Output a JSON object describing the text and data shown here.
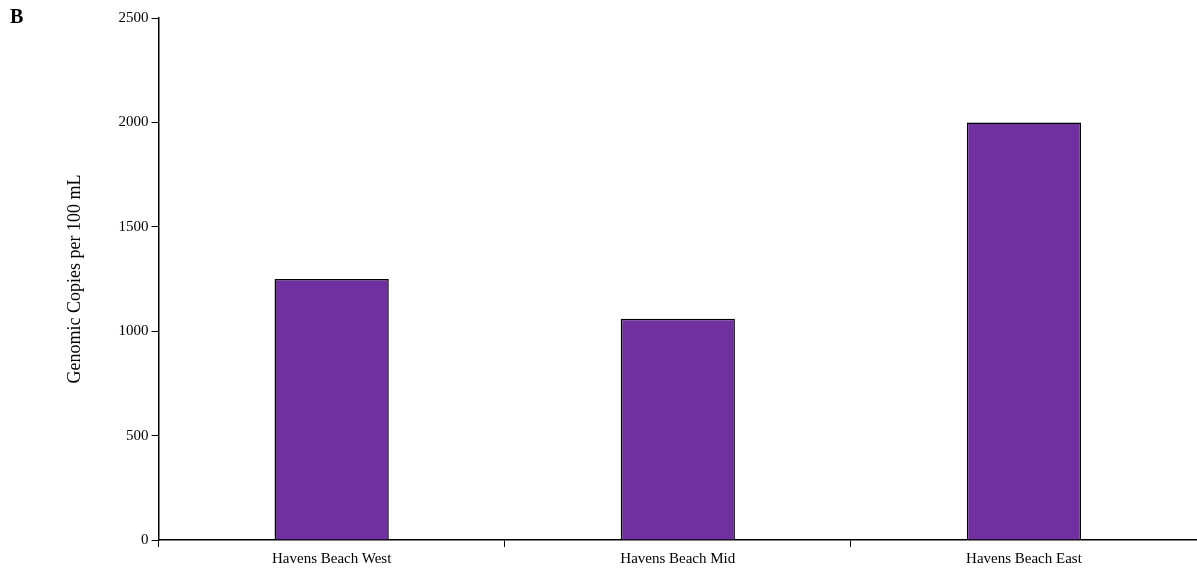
{
  "chart_data": {
    "type": "bar",
    "ylabel": "Genomic Copies per 100 mL",
    "categories": [
      "Havens Beach West",
      "Havens Beach Mid",
      "Havens Beach East"
    ],
    "values": [
      1250,
      1060,
      2000
    ],
    "color": "#7030a0",
    "ylim": [
      0,
      2500
    ],
    "yticks": [
      0,
      500,
      1000,
      1500,
      2000,
      2500
    ],
    "grid": false,
    "annotations": [
      "B"
    ]
  }
}
